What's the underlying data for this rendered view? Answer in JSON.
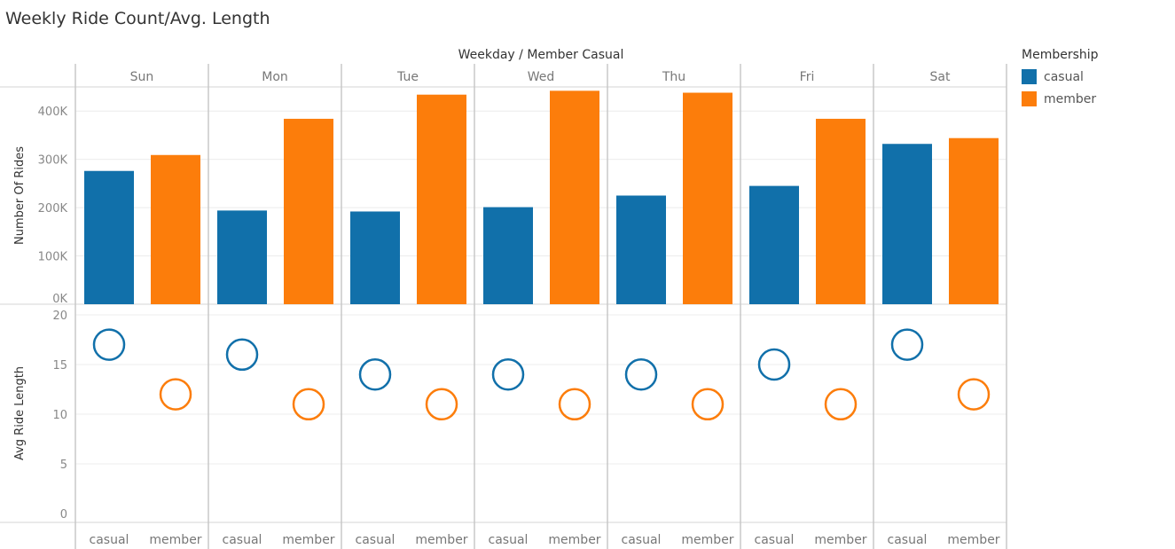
{
  "title": "Weekly Ride Count/Avg. Length",
  "chart_data": {
    "type": "bar",
    "header": "Weekday  /  Member Casual",
    "weekdays": [
      "Sun",
      "Mon",
      "Tue",
      "Wed",
      "Thu",
      "Fri",
      "Sat"
    ],
    "members": [
      "casual",
      "member"
    ],
    "colors": {
      "casual": "#1170aa",
      "member": "#fc7d0b"
    },
    "legend": {
      "title": "Membership",
      "position": "top-right",
      "items": [
        {
          "label": "casual",
          "color": "#1170aa"
        },
        {
          "label": "member",
          "color": "#fc7d0b"
        }
      ]
    },
    "bar_panel": {
      "ylabel": "Number Of Rides",
      "ylim": [
        0,
        450000
      ],
      "ticks": [
        0,
        100000,
        200000,
        300000,
        400000
      ],
      "tick_labels": [
        "0K",
        "100K",
        "200K",
        "300K",
        "400K"
      ],
      "series": [
        {
          "name": "casual",
          "values": [
            276000,
            194000,
            192000,
            201000,
            225000,
            245000,
            332000
          ]
        },
        {
          "name": "member",
          "values": [
            309000,
            384000,
            434000,
            442000,
            438000,
            384000,
            344000
          ]
        }
      ]
    },
    "scatter_panel": {
      "type": "scatter",
      "ylabel": "Avg Ride Length",
      "ylim": [
        0,
        20
      ],
      "ticks": [
        0,
        5,
        10,
        15,
        20
      ],
      "tick_labels": [
        "0",
        "5",
        "10",
        "15",
        "20"
      ],
      "series": [
        {
          "name": "casual",
          "values": [
            17,
            16,
            14,
            14,
            14,
            15,
            17
          ]
        },
        {
          "name": "member",
          "values": [
            12,
            11,
            11,
            11,
            11,
            11,
            12
          ]
        }
      ]
    }
  }
}
